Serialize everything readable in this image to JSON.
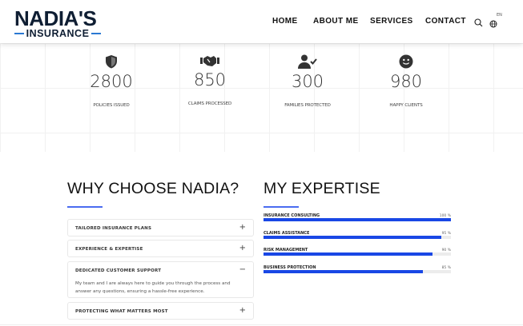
{
  "header": {
    "logo_line1": "NADIA'S",
    "logo_line2": "INSURANCE",
    "nav": [
      {
        "label": "HOME"
      },
      {
        "label": "ABOUT ME"
      },
      {
        "label": "SERVICES"
      },
      {
        "label": "CONTACT"
      }
    ],
    "language": "EN",
    "icons": [
      "search-icon",
      "globe-icon"
    ]
  },
  "stats": [
    {
      "icon": "shield-icon",
      "value": "2800",
      "label": "POLICIES ISSUED"
    },
    {
      "icon": "handshake-icon",
      "value": "850",
      "label": "CLAIMS PROCESSED"
    },
    {
      "icon": "user-check-icon",
      "value": "300",
      "label": "FAMILIES PROTECTED"
    },
    {
      "icon": "smiley-icon",
      "value": "980",
      "label": "HAPPY CLIENTS"
    }
  ],
  "why": {
    "title": "WHY CHOOSE NADIA?",
    "items": [
      {
        "title": "TAILORED INSURANCE PLANS",
        "toggle": "+"
      },
      {
        "title": "EXPERIENCE & EXPERTISE",
        "toggle": "+"
      },
      {
        "title": "DEDICATED CUSTOMER SUPPORT",
        "toggle": "−",
        "body": "My team and I are always here to guide you through the process and answer any questions, ensuring a hassle-free experience."
      },
      {
        "title": "PROTECTING WHAT MATTERS MOST",
        "toggle": "+"
      }
    ]
  },
  "expertise": {
    "title": "MY EXPERTISE",
    "bar_color": "#1947e5",
    "skills": [
      {
        "name": "INSURANCE CONSULTING",
        "percent": 100,
        "label": "100 %"
      },
      {
        "name": "CLAIMS ASSISTANCE",
        "percent": 95,
        "label": "95 %"
      },
      {
        "name": "RISK MANAGEMENT",
        "percent": 90,
        "label": "90 %"
      },
      {
        "name": "BUSINESS PROTECTION",
        "percent": 85,
        "label": "85 %"
      }
    ]
  }
}
